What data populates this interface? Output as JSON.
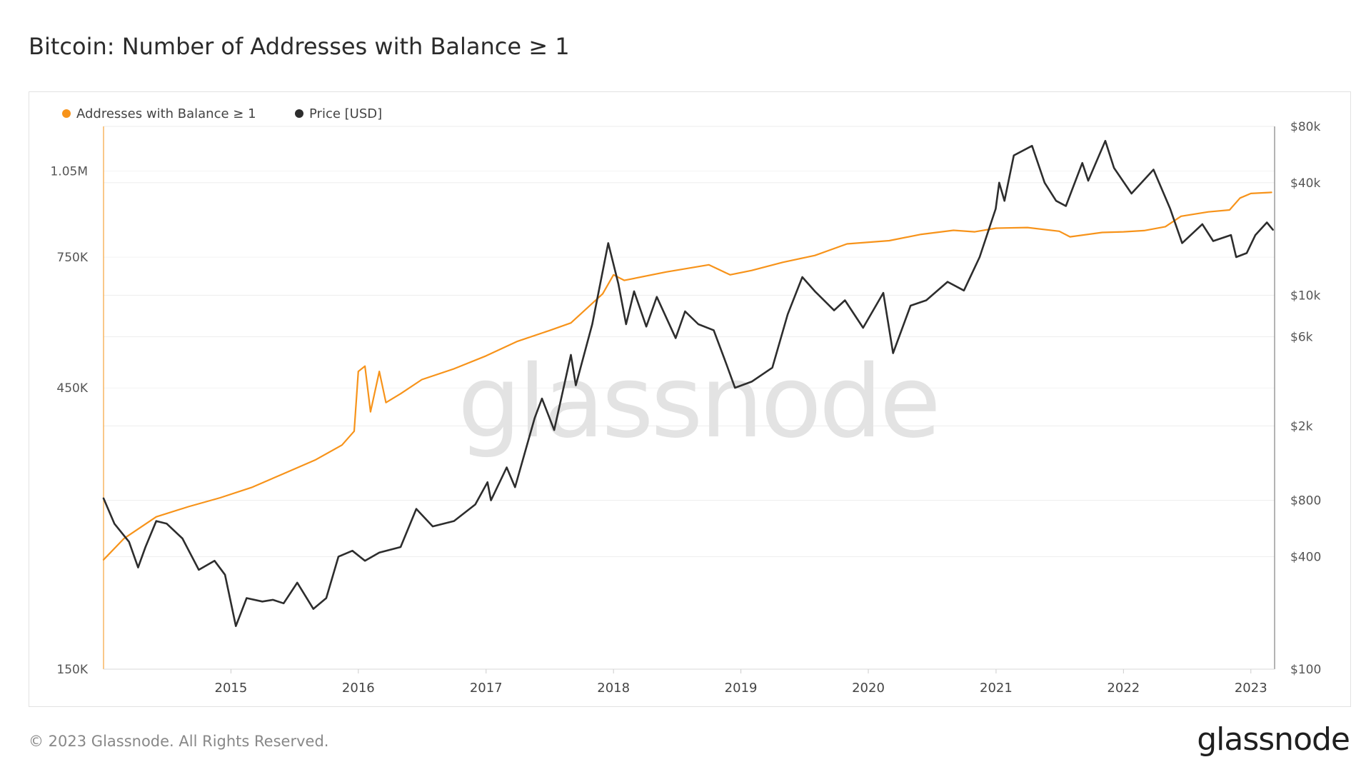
{
  "title": "Bitcoin: Number of Addresses with Balance ≥ 1",
  "footer": {
    "copyright": "© 2023 Glassnode. All Rights Reserved.",
    "logo": "glassnode"
  },
  "chart_data": {
    "type": "line",
    "watermark": "glassnode",
    "legend": [
      {
        "label": "Addresses with Balance ≥ 1",
        "color": "#f7931a",
        "icon": "dot-icon"
      },
      {
        "label": "Price [USD]",
        "color": "#2d2d2d",
        "icon": "dot-icon"
      }
    ],
    "legend_position": "top-left",
    "grid": true,
    "x_axis": {
      "type": "date",
      "range": [
        "2014-01-01",
        "2023-03-10"
      ],
      "ticks": [
        {
          "value": "2015-01-01",
          "label": "2015"
        },
        {
          "value": "2016-01-01",
          "label": "2016"
        },
        {
          "value": "2017-01-01",
          "label": "2017"
        },
        {
          "value": "2018-01-01",
          "label": "2018"
        },
        {
          "value": "2019-01-01",
          "label": "2019"
        },
        {
          "value": "2020-01-01",
          "label": "2020"
        },
        {
          "value": "2021-01-01",
          "label": "2021"
        },
        {
          "value": "2022-01-01",
          "label": "2022"
        },
        {
          "value": "2023-01-01",
          "label": "2023"
        }
      ]
    },
    "y_axis_left": {
      "scale": "log",
      "range": [
        150000,
        1250000
      ],
      "ticks": [
        {
          "value": 150000,
          "label": "150K"
        },
        {
          "value": 450000,
          "label": "450K"
        },
        {
          "value": 750000,
          "label": "750K"
        },
        {
          "value": 1050000,
          "label": "1.05M"
        }
      ]
    },
    "y_axis_right": {
      "scale": "log",
      "range": [
        100,
        80000
      ],
      "ticks": [
        {
          "value": 100,
          "label": "$100"
        },
        {
          "value": 400,
          "label": "$400"
        },
        {
          "value": 800,
          "label": "$800"
        },
        {
          "value": 2000,
          "label": "$2k"
        },
        {
          "value": 6000,
          "label": "$6k"
        },
        {
          "value": 10000,
          "label": "$10k"
        },
        {
          "value": 40000,
          "label": "$40k"
        },
        {
          "value": 80000,
          "label": "$80k"
        }
      ]
    },
    "series": [
      {
        "name": "Addresses with Balance ≥ 1",
        "axis": "left",
        "color": "#f7931a",
        "points": [
          [
            "2014-01-01",
            230000
          ],
          [
            "2014-03-01",
            250000
          ],
          [
            "2014-06-01",
            272000
          ],
          [
            "2014-09-01",
            283000
          ],
          [
            "2014-12-01",
            293000
          ],
          [
            "2015-03-01",
            305000
          ],
          [
            "2015-06-01",
            322000
          ],
          [
            "2015-09-01",
            340000
          ],
          [
            "2015-11-15",
            360000
          ],
          [
            "2015-12-20",
            380000
          ],
          [
            "2016-01-01",
            480000
          ],
          [
            "2016-01-20",
            490000
          ],
          [
            "2016-02-05",
            410000
          ],
          [
            "2016-03-01",
            480000
          ],
          [
            "2016-03-20",
            425000
          ],
          [
            "2016-05-01",
            440000
          ],
          [
            "2016-07-01",
            465000
          ],
          [
            "2016-10-01",
            485000
          ],
          [
            "2017-01-01",
            510000
          ],
          [
            "2017-04-01",
            540000
          ],
          [
            "2017-07-01",
            563000
          ],
          [
            "2017-09-01",
            580000
          ],
          [
            "2017-12-01",
            650000
          ],
          [
            "2018-01-01",
            700000
          ],
          [
            "2018-02-01",
            685000
          ],
          [
            "2018-06-01",
            708000
          ],
          [
            "2018-10-01",
            728000
          ],
          [
            "2018-12-01",
            700000
          ],
          [
            "2019-02-01",
            712000
          ],
          [
            "2019-05-01",
            735000
          ],
          [
            "2019-08-01",
            755000
          ],
          [
            "2019-11-01",
            790000
          ],
          [
            "2020-03-01",
            800000
          ],
          [
            "2020-06-01",
            820000
          ],
          [
            "2020-09-01",
            833000
          ],
          [
            "2020-11-01",
            828000
          ],
          [
            "2021-01-01",
            840000
          ],
          [
            "2021-04-01",
            842000
          ],
          [
            "2021-07-01",
            830000
          ],
          [
            "2021-08-01",
            812000
          ],
          [
            "2021-11-01",
            826000
          ],
          [
            "2022-01-01",
            828000
          ],
          [
            "2022-03-01",
            832000
          ],
          [
            "2022-05-01",
            845000
          ],
          [
            "2022-06-15",
            880000
          ],
          [
            "2022-09-01",
            895000
          ],
          [
            "2022-11-01",
            902000
          ],
          [
            "2022-12-01",
            945000
          ],
          [
            "2023-01-01",
            962000
          ],
          [
            "2023-03-01",
            966000
          ]
        ]
      },
      {
        "name": "Price [USD]",
        "axis": "right",
        "color": "#2d2d2d",
        "points": [
          [
            "2014-01-01",
            820
          ],
          [
            "2014-02-01",
            600
          ],
          [
            "2014-03-15",
            480
          ],
          [
            "2014-04-10",
            350
          ],
          [
            "2014-05-01",
            450
          ],
          [
            "2014-06-01",
            620
          ],
          [
            "2014-07-01",
            600
          ],
          [
            "2014-08-15",
            500
          ],
          [
            "2014-10-01",
            340
          ],
          [
            "2014-11-15",
            380
          ],
          [
            "2014-12-15",
            320
          ],
          [
            "2015-01-15",
            170
          ],
          [
            "2015-02-15",
            240
          ],
          [
            "2015-04-01",
            230
          ],
          [
            "2015-05-01",
            235
          ],
          [
            "2015-06-01",
            225
          ],
          [
            "2015-07-10",
            290
          ],
          [
            "2015-08-25",
            210
          ],
          [
            "2015-10-01",
            240
          ],
          [
            "2015-11-05",
            400
          ],
          [
            "2015-12-15",
            430
          ],
          [
            "2016-01-20",
            380
          ],
          [
            "2016-03-01",
            420
          ],
          [
            "2016-05-01",
            450
          ],
          [
            "2016-06-15",
            720
          ],
          [
            "2016-08-01",
            580
          ],
          [
            "2016-10-01",
            620
          ],
          [
            "2016-12-01",
            760
          ],
          [
            "2017-01-05",
            1000
          ],
          [
            "2017-01-15",
            800
          ],
          [
            "2017-03-01",
            1200
          ],
          [
            "2017-03-25",
            940
          ],
          [
            "2017-05-20",
            2200
          ],
          [
            "2017-06-10",
            2800
          ],
          [
            "2017-07-15",
            1900
          ],
          [
            "2017-09-01",
            4800
          ],
          [
            "2017-09-15",
            3300
          ],
          [
            "2017-11-01",
            7000
          ],
          [
            "2017-12-17",
            19000
          ],
          [
            "2018-01-15",
            11500
          ],
          [
            "2018-02-06",
            7000
          ],
          [
            "2018-03-01",
            10500
          ],
          [
            "2018-04-05",
            6800
          ],
          [
            "2018-05-05",
            9800
          ],
          [
            "2018-06-28",
            5900
          ],
          [
            "2018-07-25",
            8200
          ],
          [
            "2018-09-01",
            7000
          ],
          [
            "2018-10-15",
            6500
          ],
          [
            "2018-11-20",
            4300
          ],
          [
            "2018-12-15",
            3200
          ],
          [
            "2019-02-01",
            3450
          ],
          [
            "2019-04-01",
            4100
          ],
          [
            "2019-05-15",
            7900
          ],
          [
            "2019-06-26",
            12500
          ],
          [
            "2019-08-01",
            10500
          ],
          [
            "2019-09-25",
            8300
          ],
          [
            "2019-10-26",
            9400
          ],
          [
            "2019-12-17",
            6700
          ],
          [
            "2020-02-13",
            10300
          ],
          [
            "2020-03-12",
            4900
          ],
          [
            "2020-05-01",
            8800
          ],
          [
            "2020-06-15",
            9400
          ],
          [
            "2020-08-15",
            11800
          ],
          [
            "2020-10-01",
            10600
          ],
          [
            "2020-11-15",
            16000
          ],
          [
            "2020-12-31",
            29000
          ],
          [
            "2021-01-10",
            40000
          ],
          [
            "2021-01-25",
            32000
          ],
          [
            "2021-02-21",
            56000
          ],
          [
            "2021-04-14",
            63000
          ],
          [
            "2021-05-20",
            40000
          ],
          [
            "2021-06-22",
            32000
          ],
          [
            "2021-07-20",
            30000
          ],
          [
            "2021-09-05",
            51000
          ],
          [
            "2021-09-22",
            41000
          ],
          [
            "2021-11-10",
            67000
          ],
          [
            "2021-12-05",
            48000
          ],
          [
            "2022-01-24",
            35000
          ],
          [
            "2022-03-28",
            47000
          ],
          [
            "2022-05-15",
            29000
          ],
          [
            "2022-06-18",
            19000
          ],
          [
            "2022-08-15",
            24000
          ],
          [
            "2022-09-15",
            19500
          ],
          [
            "2022-11-05",
            21000
          ],
          [
            "2022-11-20",
            16000
          ],
          [
            "2022-12-20",
            16800
          ],
          [
            "2023-01-14",
            21000
          ],
          [
            "2023-02-16",
            24500
          ],
          [
            "2023-03-05",
            22400
          ]
        ]
      }
    ]
  }
}
